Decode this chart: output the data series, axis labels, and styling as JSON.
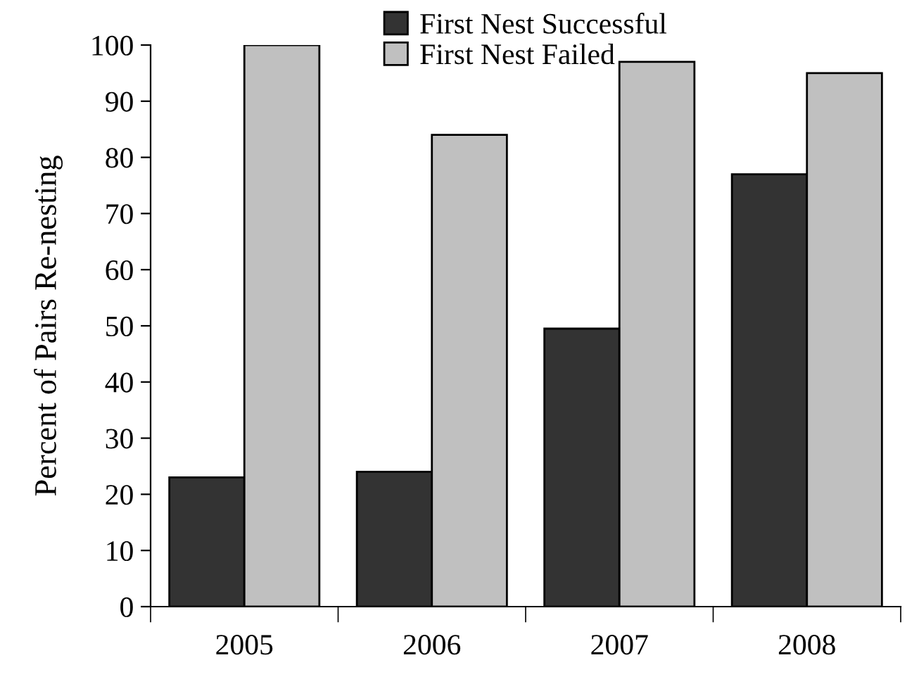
{
  "chart_data": {
    "type": "bar",
    "ylabel": "Percent of Pairs Re-nesting",
    "categories": [
      "2005",
      "2006",
      "2007",
      "2008"
    ],
    "series": [
      {
        "name": "First Nest Successful",
        "color": "#333333",
        "values": [
          23,
          24,
          49.5,
          77
        ]
      },
      {
        "name": "First Nest Failed",
        "color": "#c0c0c0",
        "values": [
          100,
          84,
          97,
          95
        ]
      }
    ],
    "ylim": [
      0,
      100
    ],
    "yticks": [
      0,
      10,
      20,
      30,
      40,
      50,
      60,
      70,
      80,
      90,
      100
    ],
    "grid": false,
    "legend": "top"
  }
}
